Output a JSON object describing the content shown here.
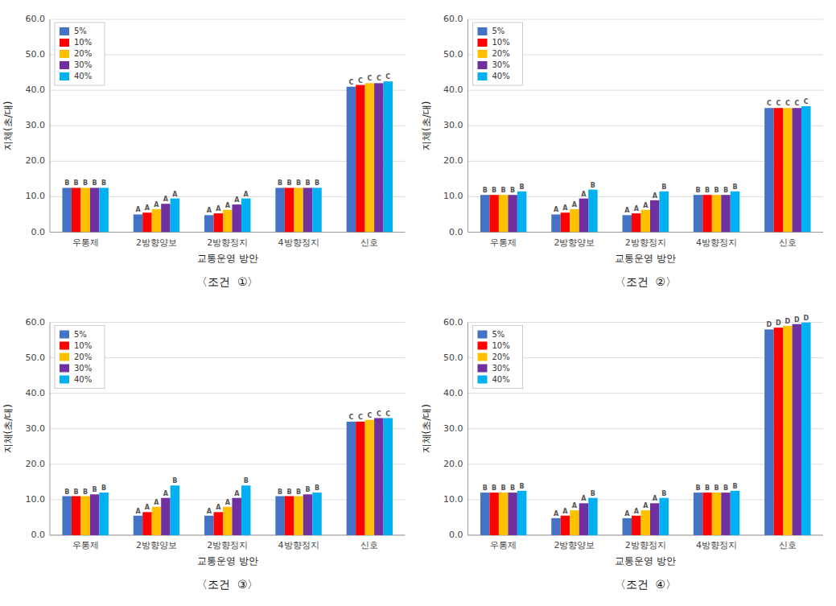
{
  "chart_data": [
    {
      "type": "bar",
      "title": "〈조건  ①〉",
      "xlabel": "교통운영 방안",
      "ylabel": "지체(초/대)",
      "categories": [
        "우통제",
        "2방향양보",
        "2방향정지",
        "4방향정지",
        "신호"
      ],
      "series": [
        {
          "name": "5%",
          "color": "#4472C4",
          "values": [
            12.5,
            5.0,
            4.8,
            12.5,
            41.0
          ],
          "bar_labels": [
            "B",
            "A",
            "A",
            "B",
            "C"
          ]
        },
        {
          "name": "10%",
          "color": "#FF0000",
          "values": [
            12.5,
            5.5,
            5.3,
            12.5,
            41.5
          ],
          "bar_labels": [
            "B",
            "A",
            "A",
            "B",
            "C"
          ]
        },
        {
          "name": "20%",
          "color": "#FFC000",
          "values": [
            12.5,
            6.5,
            6.3,
            12.5,
            42.0
          ],
          "bar_labels": [
            "B",
            "A",
            "A",
            "B",
            "C"
          ]
        },
        {
          "name": "30%",
          "color": "#7030A0",
          "values": [
            12.5,
            8.0,
            7.8,
            12.5,
            42.0
          ],
          "bar_labels": [
            "B",
            "A",
            "A",
            "B",
            "C"
          ]
        },
        {
          "name": "40%",
          "color": "#00B0F0",
          "values": [
            12.5,
            9.5,
            9.5,
            12.5,
            42.5
          ],
          "bar_labels": [
            "B",
            "A",
            "A",
            "B",
            "C"
          ]
        }
      ],
      "ylim": [
        0,
        60
      ],
      "yticks": [
        {
          "value": 0,
          "label": "0.0"
        },
        {
          "value": 10,
          "label": "10.0"
        },
        {
          "value": 20,
          "label": "20.0"
        },
        {
          "value": 30,
          "label": "30.0"
        },
        {
          "value": 40,
          "label": "40.0"
        },
        {
          "value": 50,
          "label": "50.0"
        },
        {
          "value": 60,
          "label": "60.0"
        }
      ],
      "grid": true,
      "legend": "upper left"
    },
    {
      "type": "bar",
      "title": "〈조건  ②〉",
      "xlabel": "교통운영 방안",
      "ylabel": "지체(초/대)",
      "categories": [
        "우통제",
        "2방향양보",
        "2방향정지",
        "4방향정지",
        "신호"
      ],
      "series": [
        {
          "name": "5%",
          "color": "#4472C4",
          "values": [
            10.5,
            5.0,
            4.8,
            10.5,
            35.0
          ],
          "bar_labels": [
            "B",
            "A",
            "A",
            "B",
            "C"
          ]
        },
        {
          "name": "10%",
          "color": "#FF0000",
          "values": [
            10.5,
            5.5,
            5.3,
            10.5,
            35.0
          ],
          "bar_labels": [
            "B",
            "A",
            "A",
            "B",
            "C"
          ]
        },
        {
          "name": "20%",
          "color": "#FFC000",
          "values": [
            10.5,
            6.5,
            6.3,
            10.5,
            35.0
          ],
          "bar_labels": [
            "B",
            "A",
            "A",
            "B",
            "C"
          ]
        },
        {
          "name": "30%",
          "color": "#7030A0",
          "values": [
            10.5,
            9.5,
            9.0,
            10.5,
            35.0
          ],
          "bar_labels": [
            "B",
            "A",
            "A",
            "B",
            "C"
          ]
        },
        {
          "name": "40%",
          "color": "#00B0F0",
          "values": [
            11.5,
            12.0,
            11.5,
            11.5,
            35.5
          ],
          "bar_labels": [
            "B",
            "B",
            "B",
            "B",
            "C"
          ]
        }
      ],
      "ylim": [
        0,
        60
      ],
      "yticks": [
        {
          "value": 0,
          "label": "0.0"
        },
        {
          "value": 10,
          "label": "10.0"
        },
        {
          "value": 20,
          "label": "20.0"
        },
        {
          "value": 30,
          "label": "30.0"
        },
        {
          "value": 40,
          "label": "40.0"
        },
        {
          "value": 50,
          "label": "50.0"
        },
        {
          "value": 60,
          "label": "60.0"
        }
      ],
      "grid": true,
      "legend": "upper left"
    },
    {
      "type": "bar",
      "title": "〈조건  ③〉",
      "xlabel": "교통운영 방안",
      "ylabel": "지체(초/대)",
      "categories": [
        "우통제",
        "2방향양보",
        "2방향정지",
        "4방향정지",
        "신호"
      ],
      "series": [
        {
          "name": "5%",
          "color": "#4472C4",
          "values": [
            11.0,
            5.5,
            5.5,
            11.0,
            32.0
          ],
          "bar_labels": [
            "B",
            "A",
            "A",
            "B",
            "C"
          ]
        },
        {
          "name": "10%",
          "color": "#FF0000",
          "values": [
            11.0,
            6.5,
            6.5,
            11.0,
            32.0
          ],
          "bar_labels": [
            "B",
            "A",
            "A",
            "B",
            "C"
          ]
        },
        {
          "name": "20%",
          "color": "#FFC000",
          "values": [
            11.0,
            8.0,
            8.0,
            11.0,
            32.5
          ],
          "bar_labels": [
            "B",
            "A",
            "A",
            "B",
            "C"
          ]
        },
        {
          "name": "30%",
          "color": "#7030A0",
          "values": [
            11.5,
            10.5,
            10.5,
            11.5,
            33.0
          ],
          "bar_labels": [
            "B",
            "A",
            "A",
            "B",
            "C"
          ]
        },
        {
          "name": "40%",
          "color": "#00B0F0",
          "values": [
            12.0,
            14.0,
            14.0,
            12.0,
            33.0
          ],
          "bar_labels": [
            "B",
            "B",
            "B",
            "B",
            "C"
          ]
        }
      ],
      "ylim": [
        0,
        60
      ],
      "yticks": [
        {
          "value": 0,
          "label": "0.0"
        },
        {
          "value": 10,
          "label": "10.0"
        },
        {
          "value": 20,
          "label": "20.0"
        },
        {
          "value": 30,
          "label": "30.0"
        },
        {
          "value": 40,
          "label": "40.0"
        },
        {
          "value": 50,
          "label": "50.0"
        },
        {
          "value": 60,
          "label": "60.0"
        }
      ],
      "grid": true,
      "legend": "upper left"
    },
    {
      "type": "bar",
      "title": "〈조건  ④〉",
      "xlabel": "교통운영 방안",
      "ylabel": "지체(초/대)",
      "categories": [
        "우통제",
        "2방향양보",
        "2방향정지",
        "4방향정지",
        "신호"
      ],
      "series": [
        {
          "name": "5%",
          "color": "#4472C4",
          "values": [
            12.0,
            4.8,
            4.8,
            12.0,
            58.0
          ],
          "bar_labels": [
            "B",
            "A",
            "A",
            "B",
            "D"
          ]
        },
        {
          "name": "10%",
          "color": "#FF0000",
          "values": [
            12.0,
            5.5,
            5.5,
            12.0,
            58.5
          ],
          "bar_labels": [
            "B",
            "A",
            "A",
            "B",
            "D"
          ]
        },
        {
          "name": "20%",
          "color": "#FFC000",
          "values": [
            12.0,
            7.0,
            7.0,
            12.0,
            59.0
          ],
          "bar_labels": [
            "B",
            "A",
            "A",
            "B",
            "D"
          ]
        },
        {
          "name": "30%",
          "color": "#7030A0",
          "values": [
            12.0,
            9.0,
            9.0,
            12.0,
            59.5
          ],
          "bar_labels": [
            "B",
            "A",
            "A",
            "B",
            "D"
          ]
        },
        {
          "name": "40%",
          "color": "#00B0F0",
          "values": [
            12.5,
            10.5,
            10.5,
            12.5,
            60.0
          ],
          "bar_labels": [
            "B",
            "B",
            "B",
            "B",
            "D"
          ]
        }
      ],
      "ylim": [
        0,
        60
      ],
      "yticks": [
        {
          "value": 0,
          "label": "0.0"
        },
        {
          "value": 10,
          "label": "10.0"
        },
        {
          "value": 20,
          "label": "20.0"
        },
        {
          "value": 30,
          "label": "30.0"
        },
        {
          "value": 40,
          "label": "40.0"
        },
        {
          "value": 50,
          "label": "50.0"
        },
        {
          "value": 60,
          "label": "60.0"
        }
      ],
      "grid": true,
      "legend": "upper left"
    }
  ]
}
